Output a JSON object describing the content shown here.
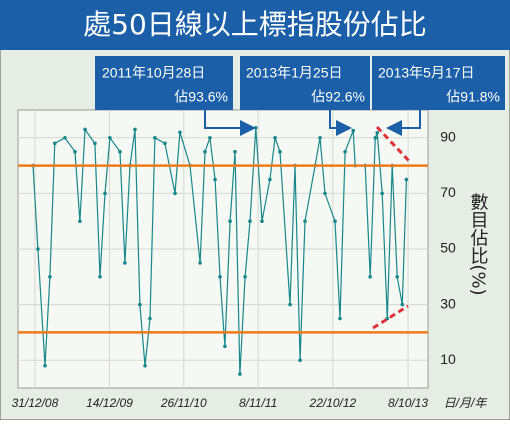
{
  "chart_data": {
    "type": "line",
    "title": "處50日線以上標指股份佔比",
    "y_label": "數目佔比(%)",
    "x_label": "日/月/年",
    "x": [
      "22/12/08",
      "14/1/09",
      "16/2/09",
      "11/3/09",
      "3/4/09",
      "20/5/09",
      "6/7/09",
      "29/7/09",
      "22/8/09",
      "7/10/09",
      "31/10/09",
      "23/11/09",
      "16/12/09",
      "1/2/10",
      "24/2/10",
      "20/3/10",
      "12/4/10",
      "5/5/10",
      "29/5/10",
      "21/6/10",
      "14/7/10",
      "30/8/10",
      "16/10/10",
      "8/11/10",
      "25/12/10",
      "10/2/11",
      "5/3/11",
      "28/3/11",
      "21/4/11",
      "14/5/11",
      "6/6/11",
      "30/6/11",
      "23/7/11",
      "15/8/11",
      "8/9/11",
      "1/10/11",
      "28/10/11",
      "26/11/11",
      "2/1/12",
      "26/1/12",
      "18/2/12",
      "5/4/12",
      "28/4/12",
      "22/5/12",
      "14/6/12",
      "31/7/12",
      "23/8/12",
      "15/9/12",
      "1/11/12",
      "24/11/12",
      "18/12/12",
      "25/1/13",
      "3/2/13",
      "22/3/13",
      "14/4/13",
      "8/5/13",
      "17/5/13",
      "9/6/13",
      "3/7/13",
      "26/7/13",
      "18/8/13",
      "11/9/13",
      "30/9/13"
    ],
    "series": [
      {
        "name": "佔比",
        "color": "#16878a",
        "values": [
          80,
          50,
          8,
          40,
          88,
          90,
          85,
          60,
          93,
          88,
          40,
          70,
          90,
          85,
          45,
          80,
          93,
          30,
          8,
          25,
          90,
          88,
          70,
          92,
          80,
          45,
          85,
          90,
          75,
          40,
          15,
          60,
          85,
          5,
          40,
          60,
          93.6,
          60,
          75,
          90,
          85,
          30,
          80,
          10,
          60,
          80,
          90,
          70,
          60,
          25,
          85,
          92.6,
          80,
          80,
          40,
          90,
          91.8,
          70,
          25,
          80,
          40,
          30,
          75
        ]
      }
    ],
    "xlim": [
      "13/10/08",
      "9/1/14"
    ],
    "xticks": [
      "31/12/08",
      "14/12/09",
      "26/11/10",
      "8/11/11",
      "22/10/12",
      "8/10/13"
    ],
    "ylim": [
      0,
      100
    ],
    "yticks": [
      10,
      30,
      50,
      70,
      90
    ],
    "grid": true,
    "reference_lines": [
      80,
      20
    ],
    "reference_color": "#f07a1a",
    "annotations": [
      {
        "date_label": "2011年10月28日",
        "value_label": "佔93.6%"
      },
      {
        "date_label": "2013年1月25日",
        "value_label": "佔92.6%"
      },
      {
        "date_label": "2013年5月17日",
        "value_label": "佔91.8%"
      }
    ]
  }
}
